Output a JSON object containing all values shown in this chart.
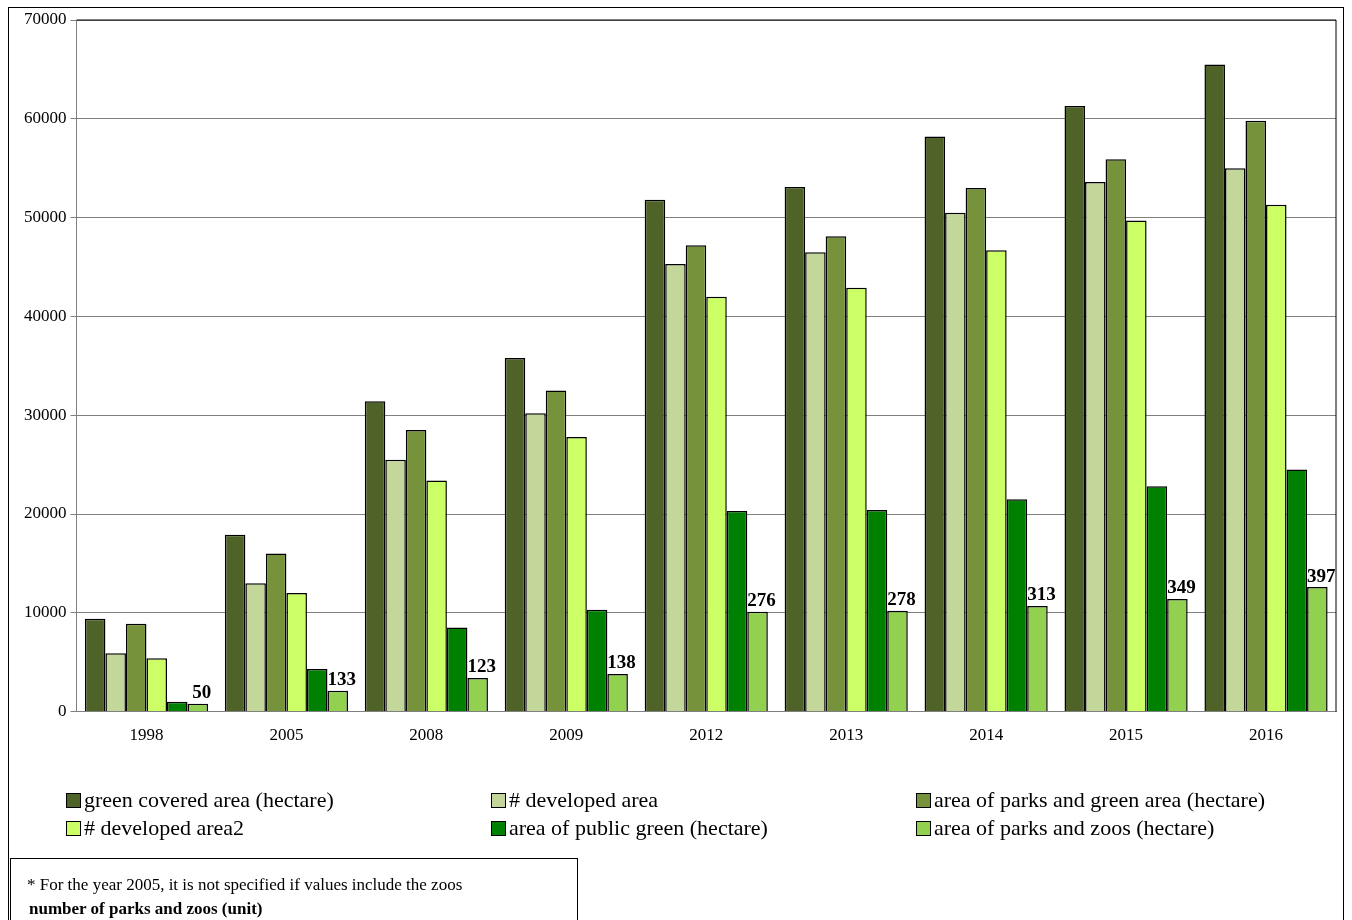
{
  "chart_data": {
    "type": "bar",
    "categories": [
      "1998",
      "2005",
      "2008",
      "2009",
      "2012",
      "2013",
      "2014",
      "2015",
      "2016"
    ],
    "series": [
      {
        "name": "green covered area (hectare)",
        "color": "#4f6228",
        "values": [
          9400,
          17900,
          31400,
          35800,
          51800,
          53100,
          58200,
          61300,
          65500
        ]
      },
      {
        "name": "# developed area",
        "color": "#c4d79b",
        "values": [
          5900,
          13000,
          25500,
          30200,
          45300,
          46500,
          50500,
          53600,
          55000
        ]
      },
      {
        "name": "area of parks and green area (hectare)",
        "color": "#76933c",
        "values": [
          8900,
          16000,
          28500,
          32500,
          47200,
          48100,
          53000,
          55900,
          59800
        ]
      },
      {
        "name": "# developed area2",
        "color": "#ccff66",
        "values": [
          5400,
          12000,
          23400,
          27800,
          42000,
          42900,
          46700,
          49700,
          51300
        ]
      },
      {
        "name": "area of public green (hectare)",
        "color": "#008000",
        "values": [
          1000,
          4300,
          8500,
          10300,
          20300,
          20400,
          21500,
          22800,
          24500
        ]
      },
      {
        "name": "area of parks and zoos (hectare)",
        "color": "#92d050",
        "values": [
          800,
          2100,
          3400,
          3800,
          10100,
          10200,
          10700,
          11400,
          12600
        ]
      }
    ],
    "ylim": [
      0,
      70000
    ],
    "yticks": [
      0,
      10000,
      20000,
      30000,
      40000,
      50000,
      60000,
      70000
    ],
    "grid": "y",
    "legend": "bottom",
    "annotations": [
      "* For the year 2005, it is not specified if values include the zoos",
      "number of parks and zoos (unit)",
      {
        "text": "50",
        "x": "1998",
        "y": 800
      },
      {
        "text": "133",
        "x": "2005",
        "y": 2100
      },
      {
        "text": "123",
        "x": "2008",
        "y": 3400
      },
      {
        "text": "138",
        "x": "2009",
        "y": 3800
      },
      {
        "text": "276",
        "x": "2012",
        "y": 10100
      },
      {
        "text": "278",
        "x": "2013",
        "y": 10200
      },
      {
        "text": "313",
        "x": "2014",
        "y": 10700
      },
      {
        "text": "349",
        "x": "2015",
        "y": 11400
      },
      {
        "text": "397",
        "x": "2016",
        "y": 12600
      }
    ]
  }
}
